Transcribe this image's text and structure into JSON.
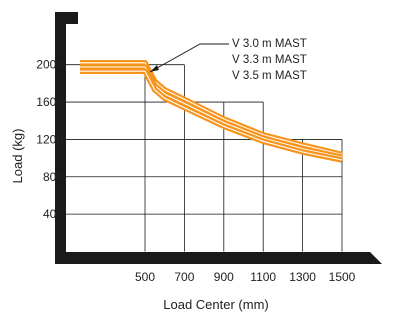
{
  "chart_data": {
    "type": "line",
    "xlabel": "Load Center (mm)",
    "ylabel": "Load (kg)",
    "x_ticks": [
      500,
      700,
      900,
      1100,
      1300,
      1500
    ],
    "y_ticks": [
      400,
      800,
      1200,
      1600,
      2000
    ],
    "xlim": [
      500,
      1500
    ],
    "ylim": [
      0,
      2300
    ],
    "grid": true,
    "annotations": [
      "V 3.0 m MAST",
      "V 3.3 m MAST",
      "V 3.5 m MAST"
    ],
    "series": [
      {
        "name": "V 3.0 m MAST",
        "x": [
          250,
          500,
          520,
          550,
          600,
          700,
          900,
          1100,
          1300,
          1500
        ],
        "y": [
          2020,
          2020,
          1940,
          1820,
          1730,
          1630,
          1420,
          1250,
          1140,
          1040
        ]
      },
      {
        "name": "V 3.3 m MAST",
        "x": [
          250,
          500,
          520,
          550,
          600,
          700,
          900,
          1100,
          1300,
          1500
        ],
        "y": [
          1975,
          1975,
          1895,
          1775,
          1685,
          1585,
          1380,
          1215,
          1100,
          1010
        ]
      },
      {
        "name": "V 3.5 m MAST",
        "x": [
          250,
          500,
          520,
          550,
          600,
          700,
          900,
          1100,
          1300,
          1500
        ],
        "y": [
          1930,
          1930,
          1850,
          1730,
          1640,
          1540,
          1340,
          1180,
          1065,
          980
        ]
      }
    ],
    "colors": {
      "curve": "#f7941d",
      "outline": "#ffffff",
      "frame": "#1a1a1a",
      "grid": "#1a1a1a"
    }
  }
}
